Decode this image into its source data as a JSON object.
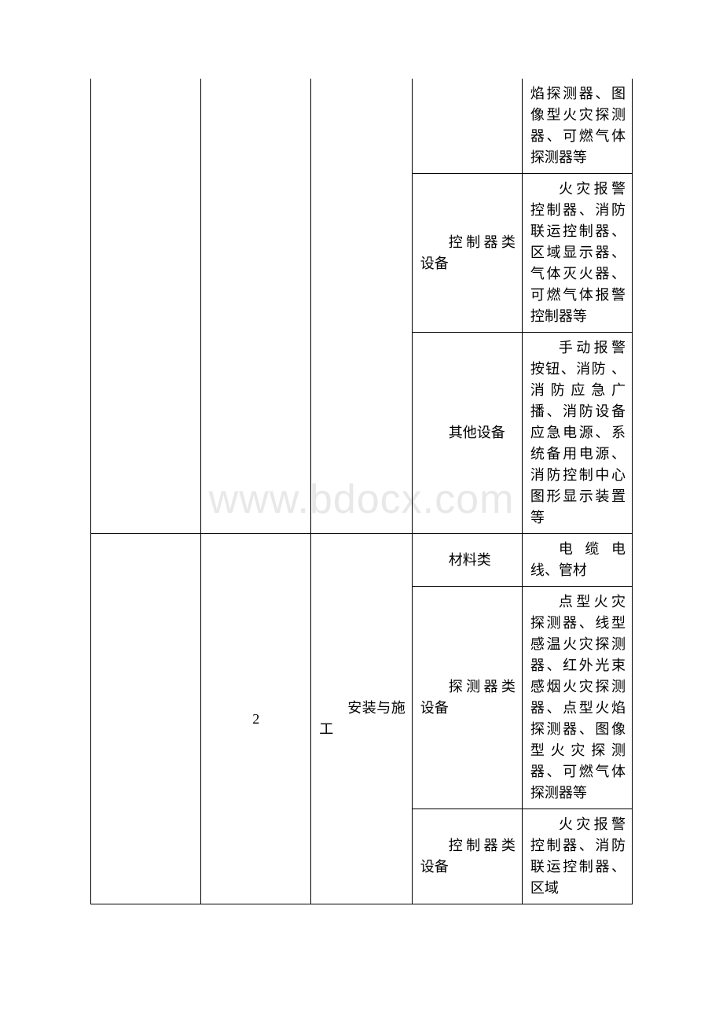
{
  "watermark": "www.bdocx.com",
  "table": {
    "rows": [
      {
        "c1": "",
        "c2": "",
        "c3": "",
        "c4": "",
        "c5": "焰探测器、图像型火灾探测器、可燃气体探测器等",
        "span": {
          "c1": 1,
          "c2": 1,
          "c3": 1,
          "c4": 1,
          "c5": 1
        }
      },
      {
        "c4_indent": "控制器类设备",
        "c5_indent": "火灾报警控制器、消防联运控制器、区域显示器、气体灭火器、可燃气体报警控制器等"
      },
      {
        "c4_indent": "其他设备",
        "c5_indent": "手动报警按钮、消防 、消防应急广播、消防设备应急电源、系统备用电源、消防控制中心图形显示装置等"
      },
      {
        "c2": "2",
        "c3_indent": "安装与施工",
        "c4_indent": "材料类",
        "c5_indent": "电缆电线、管材"
      },
      {
        "c4_indent": "探测器类设备",
        "c5_indent": "点型火灾探测器、线型感温火灾探测器、红外光束感烟火灾探测器、点型火焰探测器、图像型火灾探测器、可燃气体探测器等"
      },
      {
        "c4_indent": "控制器类设备",
        "c5_indent": "火灾报警控制器、消防联运控制器、区域"
      }
    ]
  }
}
